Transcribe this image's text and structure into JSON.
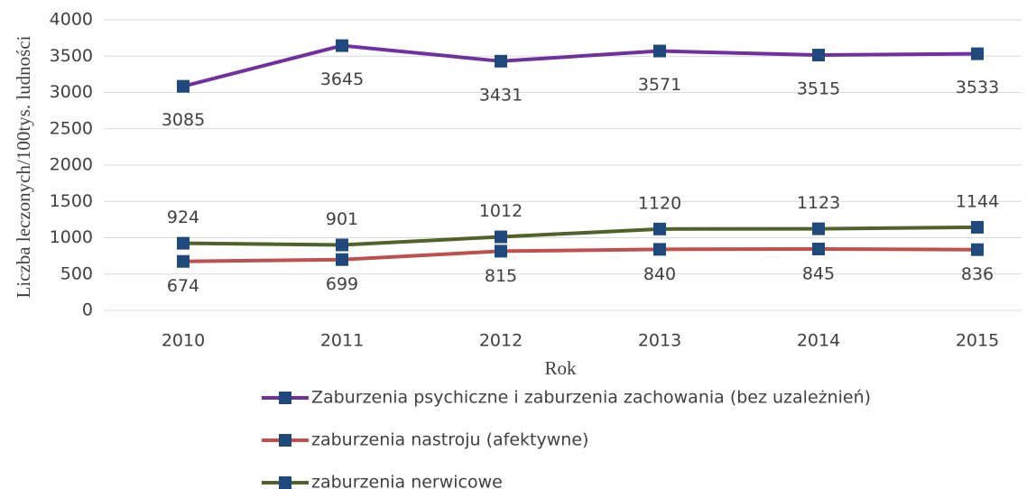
{
  "chart_data": {
    "type": "line",
    "y_label": "Liczba leczonych/100tys. ludności",
    "x_label": "Rok",
    "categories": [
      "2010",
      "2011",
      "2012",
      "2013",
      "2014",
      "2015"
    ],
    "series": [
      {
        "name": "Zaburzenia psychiczne i zaburzenia zachowania (bez uzależnień)",
        "color": "#7030a0",
        "values": [
          3085,
          3645,
          3431,
          3571,
          3515,
          3533
        ]
      },
      {
        "name": "zaburzenia nastroju (afektywne)",
        "color": "#c0504d",
        "values": [
          674,
          699,
          815,
          840,
          845,
          836
        ]
      },
      {
        "name": "zaburzenia nerwicowe",
        "color": "#4f6228",
        "values": [
          924,
          901,
          1012,
          1120,
          1123,
          1144
        ]
      }
    ],
    "marker_color": "#1f497d",
    "ylim": [
      0,
      4000
    ],
    "yticks": [
      0,
      500,
      1000,
      1500,
      2000,
      2500,
      3000,
      3500,
      4000
    ],
    "grid": true
  }
}
